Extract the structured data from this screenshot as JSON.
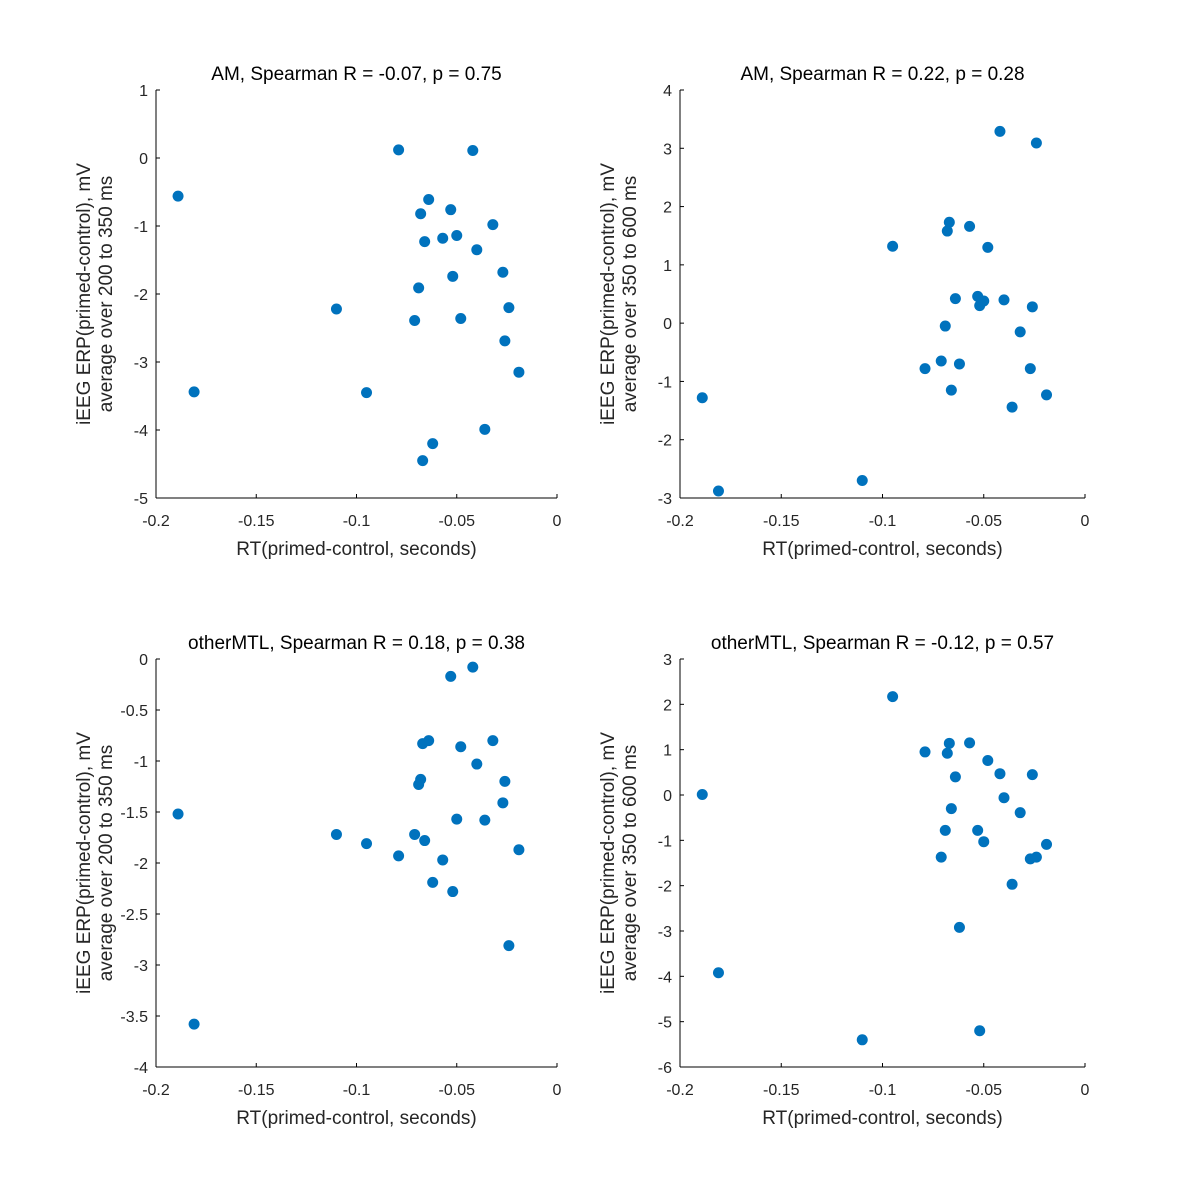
{
  "chart_data": [
    {
      "type": "scatter",
      "title": "AM, Spearman R = -0.07, p = 0.75",
      "xlabel": "RT(primed-control, seconds)",
      "ylabel": [
        "iEEG ERP(primed-control), mV",
        "average over 200 to 350 ms"
      ],
      "xlim": [
        -0.2,
        0
      ],
      "ylim": [
        -5,
        1
      ],
      "xticks": [
        -0.2,
        -0.15,
        -0.1,
        -0.05,
        0
      ],
      "xtick_labels": [
        "-0.2",
        "-0.15",
        "-0.1",
        "-0.05",
        "0"
      ],
      "yticks": [
        -5,
        -4,
        -3,
        -2,
        -1,
        0,
        1
      ],
      "ytick_labels": [
        "-5",
        "-4",
        "-3",
        "-2",
        "-1",
        "0",
        "1"
      ],
      "marker_color": "#0072BD",
      "grid": false,
      "x": [
        -0.189,
        -0.181,
        -0.11,
        -0.095,
        -0.079,
        -0.071,
        -0.069,
        -0.068,
        -0.067,
        -0.066,
        -0.064,
        -0.062,
        -0.057,
        -0.053,
        -0.052,
        -0.05,
        -0.048,
        -0.042,
        -0.04,
        -0.036,
        -0.032,
        -0.027,
        -0.026,
        -0.024,
        -0.019
      ],
      "y": [
        -0.56,
        -3.44,
        -2.22,
        -3.45,
        0.12,
        -2.39,
        -1.91,
        -0.82,
        -4.45,
        -1.23,
        -0.61,
        -4.2,
        -1.18,
        -0.76,
        -1.74,
        -1.14,
        -2.36,
        0.11,
        -1.35,
        -3.99,
        -0.98,
        -1.68,
        -2.69,
        -2.2,
        -3.15
      ]
    },
    {
      "type": "scatter",
      "title": "AM, Spearman R = 0.22, p = 0.28",
      "xlabel": "RT(primed-control, seconds)",
      "ylabel": [
        "iEEG ERP(primed-control), mV",
        "average over 350 to 600 ms"
      ],
      "xlim": [
        -0.2,
        0
      ],
      "ylim": [
        -3,
        4
      ],
      "xticks": [
        -0.2,
        -0.15,
        -0.1,
        -0.05,
        0
      ],
      "xtick_labels": [
        "-0.2",
        "-0.15",
        "-0.1",
        "-0.05",
        "0"
      ],
      "yticks": [
        -3,
        -2,
        -1,
        0,
        1,
        2,
        3,
        4
      ],
      "ytick_labels": [
        "-3",
        "-2",
        "-1",
        "0",
        "1",
        "2",
        "3",
        "4"
      ],
      "marker_color": "#0072BD",
      "grid": false,
      "x": [
        -0.189,
        -0.181,
        -0.11,
        -0.095,
        -0.079,
        -0.071,
        -0.069,
        -0.068,
        -0.067,
        -0.066,
        -0.064,
        -0.062,
        -0.057,
        -0.053,
        -0.052,
        -0.05,
        -0.048,
        -0.042,
        -0.04,
        -0.036,
        -0.032,
        -0.027,
        -0.026,
        -0.024,
        -0.019
      ],
      "y": [
        -1.28,
        -2.88,
        -2.7,
        1.32,
        -0.78,
        -0.65,
        -0.05,
        1.58,
        1.73,
        -1.15,
        0.42,
        -0.7,
        1.66,
        0.46,
        0.3,
        0.38,
        1.3,
        3.29,
        0.4,
        -1.44,
        -0.15,
        -0.78,
        0.28,
        3.09,
        -1.23
      ]
    },
    {
      "type": "scatter",
      "title": "otherMTL, Spearman R = 0.18, p = 0.38",
      "xlabel": "RT(primed-control, seconds)",
      "ylabel": [
        "iEEG ERP(primed-control), mV",
        "average over 200 to 350 ms"
      ],
      "xlim": [
        -0.2,
        0
      ],
      "ylim": [
        -4,
        0
      ],
      "xticks": [
        -0.2,
        -0.15,
        -0.1,
        -0.05,
        0
      ],
      "xtick_labels": [
        "-0.2",
        "-0.15",
        "-0.1",
        "-0.05",
        "0"
      ],
      "yticks": [
        -4,
        -3.5,
        -3,
        -2.5,
        -2,
        -1.5,
        -1,
        -0.5,
        0
      ],
      "ytick_labels": [
        "-4",
        "-3.5",
        "-3",
        "-2.5",
        "-2",
        "-1.5",
        "-1",
        "-0.5",
        "0"
      ],
      "marker_color": "#0072BD",
      "grid": false,
      "x": [
        -0.189,
        -0.181,
        -0.11,
        -0.095,
        -0.079,
        -0.071,
        -0.069,
        -0.068,
        -0.067,
        -0.066,
        -0.064,
        -0.062,
        -0.057,
        -0.053,
        -0.052,
        -0.05,
        -0.048,
        -0.042,
        -0.04,
        -0.036,
        -0.032,
        -0.027,
        -0.026,
        -0.024,
        -0.019
      ],
      "y": [
        -1.52,
        -3.58,
        -1.72,
        -1.81,
        -1.93,
        -1.72,
        -1.23,
        -1.18,
        -0.83,
        -1.78,
        -0.8,
        -2.19,
        -1.97,
        -0.17,
        -2.28,
        -1.57,
        -0.86,
        -0.08,
        -1.03,
        -1.58,
        -0.8,
        -1.41,
        -1.2,
        -2.81,
        -1.87
      ]
    },
    {
      "type": "scatter",
      "title": "otherMTL, Spearman R = -0.12, p = 0.57",
      "xlabel": "RT(primed-control, seconds)",
      "ylabel": [
        "iEEG ERP(primed-control), mV",
        "average over 350 to 600 ms"
      ],
      "xlim": [
        -0.2,
        0
      ],
      "ylim": [
        -6,
        3
      ],
      "xticks": [
        -0.2,
        -0.15,
        -0.1,
        -0.05,
        0
      ],
      "xtick_labels": [
        "-0.2",
        "-0.15",
        "-0.1",
        "-0.05",
        "0"
      ],
      "yticks": [
        -6,
        -5,
        -4,
        -3,
        -2,
        -1,
        0,
        1,
        2,
        3
      ],
      "ytick_labels": [
        "-6",
        "-5",
        "-4",
        "-3",
        "-2",
        "-1",
        "0",
        "1",
        "2",
        "3"
      ],
      "marker_color": "#0072BD",
      "grid": false,
      "x": [
        -0.189,
        -0.181,
        -0.11,
        -0.095,
        -0.079,
        -0.071,
        -0.069,
        -0.068,
        -0.067,
        -0.066,
        -0.064,
        -0.062,
        -0.057,
        -0.053,
        -0.052,
        -0.05,
        -0.048,
        -0.042,
        -0.04,
        -0.036,
        -0.032,
        -0.027,
        -0.026,
        -0.024,
        -0.019
      ],
      "y": [
        0.01,
        -3.92,
        -5.4,
        2.17,
        0.95,
        -1.37,
        -0.78,
        0.92,
        1.14,
        -0.3,
        0.4,
        -2.92,
        1.15,
        -0.78,
        -5.2,
        -1.03,
        0.76,
        0.47,
        -0.06,
        -1.97,
        -0.39,
        -1.41,
        0.45,
        -1.37,
        -1.09
      ]
    }
  ]
}
